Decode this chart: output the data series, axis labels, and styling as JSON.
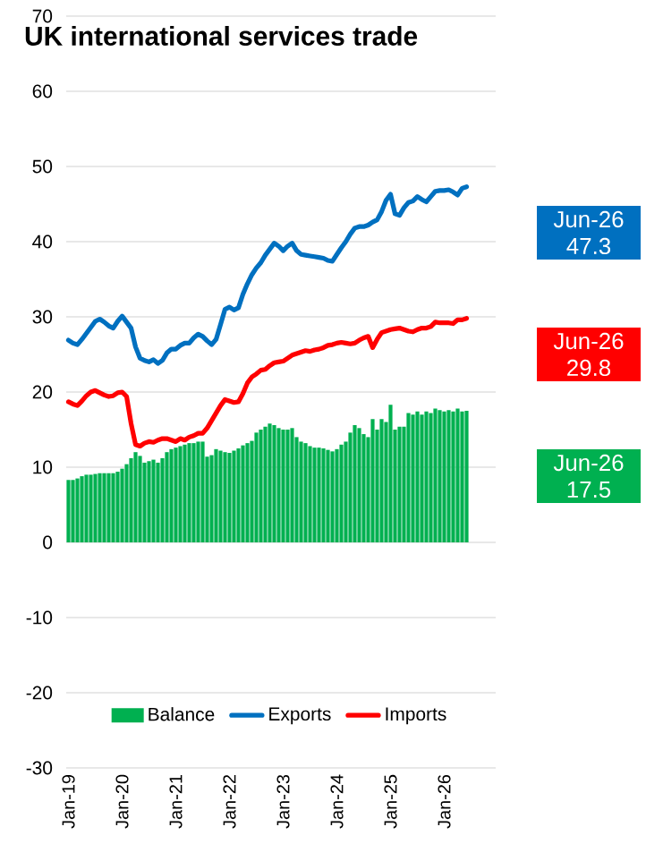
{
  "chart_data": {
    "type": "bar",
    "title": "UK international services trade",
    "categories": [
      "Jan-19",
      null,
      null,
      null,
      null,
      null,
      null,
      null,
      null,
      null,
      null,
      null,
      "Jan-20",
      null,
      null,
      null,
      null,
      null,
      null,
      null,
      null,
      null,
      null,
      null,
      "Jan-21",
      null,
      null,
      null,
      null,
      null,
      null,
      null,
      null,
      null,
      null,
      null,
      "Jan-22",
      null,
      null,
      null,
      null,
      null,
      null,
      null,
      null,
      null,
      null,
      null,
      "Jan-23",
      null,
      null,
      null,
      null,
      null,
      null,
      null,
      null,
      null,
      null,
      null,
      "Jan-24",
      null,
      null,
      null,
      null,
      null,
      null,
      null,
      null,
      null,
      null,
      null,
      "Jan-25",
      null,
      null,
      null,
      null,
      null,
      null,
      null,
      null,
      null,
      null,
      null,
      "Jan-26",
      null,
      null,
      null,
      null,
      null,
      null,
      null,
      null,
      null,
      null,
      null
    ],
    "series": [
      {
        "name": "Balance",
        "color": "#00b050",
        "values": [
          8.3,
          8.3,
          8.5,
          8.8,
          9.0,
          9.0,
          9.1,
          9.2,
          9.2,
          9.2,
          9.2,
          9.4,
          9.8,
          10.4,
          11.2,
          12.0,
          11.5,
          10.6,
          10.8,
          11.0,
          10.6,
          11.2,
          12.0,
          12.4,
          12.6,
          12.8,
          13.0,
          13.2,
          13.2,
          13.4,
          13.4,
          11.4,
          11.6,
          12.4,
          12.2,
          12.0,
          11.9,
          12.2,
          12.5,
          12.9,
          13.2,
          13.5,
          14.6,
          15.0,
          15.4,
          15.8,
          15.6,
          15.2,
          15.0,
          15.0,
          15.2,
          14.0,
          13.4,
          13.2,
          12.8,
          12.6,
          12.6,
          12.5,
          12.3,
          12.1,
          12.4,
          13.0,
          13.4,
          14.6,
          15.6,
          15.2,
          14.4,
          14.0,
          16.4,
          15.0,
          16.4,
          16.0,
          18.3,
          15.0,
          15.4,
          15.4,
          17.2,
          17.0,
          17.4,
          17.0,
          17.4,
          17.2,
          17.8,
          17.6,
          17.4,
          17.6,
          17.4,
          17.8,
          17.4,
          17.5,
          null,
          null,
          null,
          null,
          null,
          null
        ]
      },
      {
        "name": "Exports",
        "type": "line",
        "color": "#0070c0",
        "values": [
          26.9,
          26.5,
          26.3,
          27.0,
          27.8,
          28.6,
          29.4,
          29.7,
          29.3,
          28.8,
          28.5,
          29.4,
          30.1,
          29.3,
          28.5,
          26.0,
          24.5,
          24.2,
          24.0,
          24.3,
          23.8,
          24.2,
          25.2,
          25.7,
          25.7,
          26.2,
          26.5,
          26.5,
          27.2,
          27.7,
          27.4,
          26.8,
          26.3,
          27.0,
          29.0,
          31.0,
          31.3,
          30.9,
          31.2,
          33.0,
          34.4,
          35.6,
          36.5,
          37.2,
          38.2,
          39.0,
          39.8,
          39.4,
          38.8,
          39.4,
          39.8,
          38.8,
          38.3,
          38.2,
          38.1,
          38.0,
          37.9,
          37.8,
          37.5,
          37.4,
          38.3,
          39.2,
          40.0,
          41.0,
          41.8,
          42.0,
          42.0,
          42.2,
          42.6,
          42.9,
          44.0,
          45.5,
          46.3,
          43.7,
          43.5,
          44.5,
          45.2,
          45.4,
          46.0,
          45.6,
          45.3,
          46.0,
          46.7,
          46.8,
          46.8,
          46.9,
          46.6,
          46.2,
          47.1,
          47.3,
          null,
          null,
          null,
          null,
          null,
          null
        ]
      },
      {
        "name": "Imports",
        "type": "line",
        "color": "#ff0000",
        "values": [
          18.7,
          18.4,
          18.2,
          18.8,
          19.5,
          20.0,
          20.2,
          19.9,
          19.6,
          19.4,
          19.5,
          19.9,
          20.0,
          19.4,
          15.8,
          13.0,
          12.8,
          13.2,
          13.4,
          13.3,
          13.6,
          13.8,
          13.8,
          13.6,
          13.4,
          13.8,
          13.6,
          14.0,
          14.2,
          14.5,
          14.5,
          15.2,
          16.2,
          17.2,
          18.2,
          19.0,
          18.8,
          18.6,
          18.7,
          19.8,
          21.2,
          22.0,
          22.4,
          22.9,
          23.0,
          23.5,
          23.9,
          24.0,
          24.1,
          24.5,
          24.9,
          25.1,
          25.3,
          25.5,
          25.4,
          25.6,
          25.7,
          25.9,
          26.2,
          26.3,
          26.5,
          26.6,
          26.5,
          26.4,
          26.5,
          26.9,
          27.2,
          27.4,
          25.9,
          27.0,
          27.9,
          28.1,
          28.3,
          28.4,
          28.5,
          28.3,
          28.1,
          28.0,
          28.3,
          28.5,
          28.5,
          28.7,
          29.3,
          29.2,
          29.2,
          29.2,
          29.1,
          29.6,
          29.6,
          29.8,
          null,
          null,
          null,
          null,
          null,
          null
        ]
      }
    ],
    "annotations": [
      "Jun-26 47.3",
      "Jun-26 29.8",
      "Jun-26 17.5"
    ],
    "ylim": [
      -30,
      70
    ],
    "yticks": [
      -30,
      -20,
      -10,
      0,
      10,
      20,
      30,
      40,
      50,
      60,
      70
    ],
    "grid": "y",
    "legend": "bottom"
  }
}
